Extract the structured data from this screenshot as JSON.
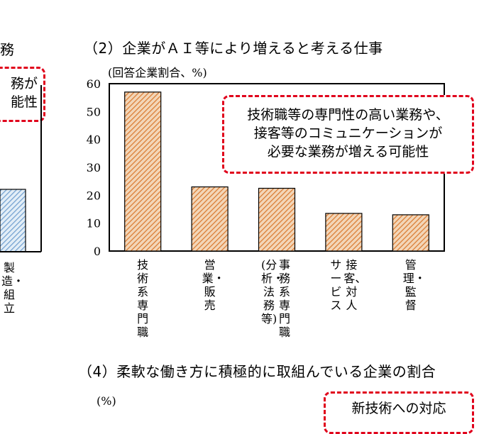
{
  "left_panel": {
    "title_fragment": "務",
    "callout_fragment": "務が\n能性",
    "vertical_label": "製造・組立"
  },
  "panel2": {
    "title": "（2）企業がＡＩ等により増えると考える仕事",
    "callout": "技術職等の専門性の高い業務や、\n接客等のコミュニケーションが\n必要な業務が増える可能性"
  },
  "panel4": {
    "title": "（4）柔軟な働き方に積極的に取組んでいる企業の割合",
    "unit": "(%)",
    "callout_fragment": "新技術への対応"
  },
  "colors": {
    "bar_fill": "#f3d6b8",
    "bar_hatch": "#d9782d",
    "left_bar_fill": "#e3eef7",
    "left_bar_hatch": "#6f9ecf",
    "callout_border": "#e0001b"
  },
  "chart_data": {
    "type": "bar",
    "ylabel": "(回答企業割合、%)",
    "ylim": [
      0,
      60
    ],
    "yticks": [
      0,
      10,
      20,
      30,
      40,
      50,
      60
    ],
    "categories": [
      "技術系専門職",
      "営業・販売",
      "事務系専門職\n(分析・法務等)",
      "接客、対人\nサービス",
      "管理・監督"
    ],
    "values": [
      57,
      23,
      22.5,
      13.5,
      13
    ]
  }
}
